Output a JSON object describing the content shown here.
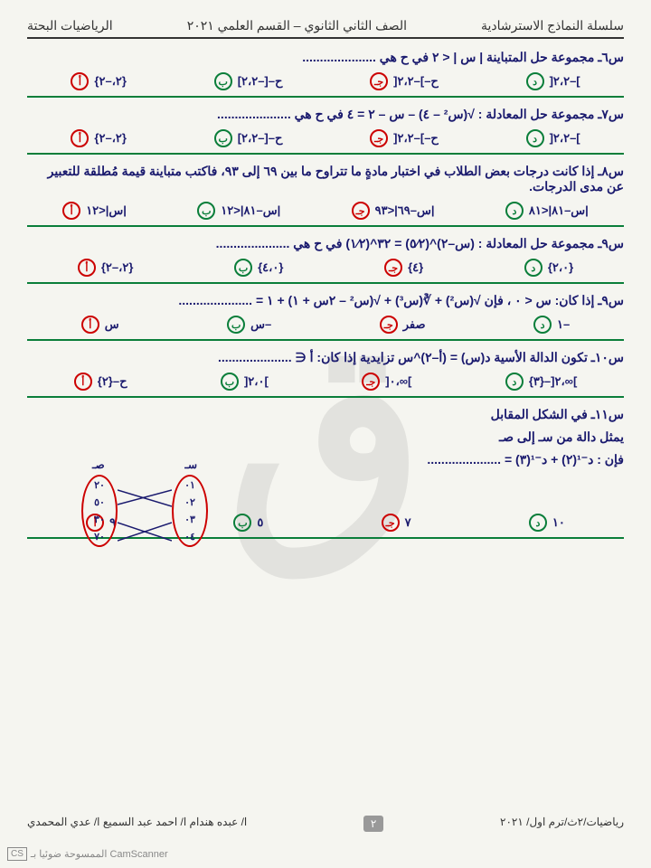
{
  "header": {
    "right": "سلسلة النماذج الاسترشادية",
    "center": "الصف الثاني الثانوي – القسم العلمي ٢٠٢١",
    "left": "الرياضيات البحتة"
  },
  "questions": [
    {
      "num": "س٦ـ",
      "text": "مجموعة حل المتباينة | س | < ٢ في ح هي .....................",
      "opts": [
        {
          "sym": "أ",
          "col": "c-red",
          "val": "{٢،–٢}"
        },
        {
          "sym": "ب",
          "col": "c-green",
          "val": "ح–[–٢،٢]"
        },
        {
          "sym": "جـ",
          "col": "c-red",
          "val": "ح–]–٢،٢["
        },
        {
          "sym": "د",
          "col": "c-green",
          "val": "]–٢،٢["
        }
      ]
    },
    {
      "num": "س٧ـ",
      "text": "مجموعة حل المعادلة : √(س² – ٤) – س – ٢ = ٤ في ح هي .....................",
      "opts": [
        {
          "sym": "أ",
          "col": "c-red",
          "val": "{٢،–٢}"
        },
        {
          "sym": "ب",
          "col": "c-green",
          "val": "ح–[–٢،٢]"
        },
        {
          "sym": "جـ",
          "col": "c-red",
          "val": "ح–]–٢،٢["
        },
        {
          "sym": "د",
          "col": "c-green",
          "val": "]–٢،٢["
        }
      ]
    },
    {
      "num": "س٨ـ",
      "text": "إذا كانت درجات بعض الطلاب في اختبار مادةٍ ما تتراوح ما بين ٦٩ إلى ٩٣، فاكتب متباينة قيمة مُطلقة للتعبير عن مدى الدرجات.",
      "opts": [
        {
          "sym": "أ",
          "col": "c-red",
          "val": "|س|<١٢"
        },
        {
          "sym": "ب",
          "col": "c-green",
          "val": "|س–٨١|<١٢"
        },
        {
          "sym": "جـ",
          "col": "c-red",
          "val": "|س–٦٩|<٩٣"
        },
        {
          "sym": "د",
          "col": "c-green",
          "val": "|س–٨١|<٨١"
        }
      ]
    },
    {
      "num": "س٩ـ",
      "text": "مجموعة حل المعادلة : (س–٢)^(٥⁄٢) = ٣٢^(١⁄٢) في ح هي .....................",
      "opts": [
        {
          "sym": "أ",
          "col": "c-red",
          "val": "{٢،–٢}"
        },
        {
          "sym": "ب",
          "col": "c-green",
          "val": "{٤،٠}"
        },
        {
          "sym": "جـ",
          "col": "c-red",
          "val": "{٤}"
        },
        {
          "sym": "د",
          "col": "c-green",
          "val": "{٢،٠}"
        }
      ]
    },
    {
      "num": "س٩ـ",
      "text": "إذا كان: س < ٠ ، فإن √(س²) + ∛(س³) + √(س² – ٢س + ١) + ١ = .....................",
      "opts": [
        {
          "sym": "أ",
          "col": "c-red",
          "val": "س"
        },
        {
          "sym": "ب",
          "col": "c-green",
          "val": "–س"
        },
        {
          "sym": "جـ",
          "col": "c-red",
          "val": "صفر"
        },
        {
          "sym": "د",
          "col": "c-green",
          "val": "–١"
        }
      ]
    },
    {
      "num": "س١٠ـ",
      "text": "تكون الدالة الأسية د(س) = (أ–٢)^س تزايدية إذا كان: أ ∈ .....................",
      "opts": [
        {
          "sym": "أ",
          "col": "c-red",
          "val": "ح–{٢}"
        },
        {
          "sym": "ب",
          "col": "c-green",
          "val": "]٢،٠["
        },
        {
          "sym": "جـ",
          "col": "c-red",
          "val": "]∞،٠["
        },
        {
          "sym": "د",
          "col": "c-green",
          "val": "]∞،٢[–{٣}"
        }
      ]
    }
  ],
  "q11": {
    "num": "س١١ـ",
    "line1": "في الشكل المقابل",
    "line2": "يمثل دالة من سـ إلى صـ",
    "line3": "فإن : د⁻¹(٢) + د⁻¹(٣) = .....................",
    "opts": [
      {
        "sym": "أ",
        "col": "c-red",
        "val": "٩"
      },
      {
        "sym": "ب",
        "col": "c-green",
        "val": "٥"
      },
      {
        "sym": "جـ",
        "col": "c-red",
        "val": "٧"
      },
      {
        "sym": "د",
        "col": "c-green",
        "val": "١٠"
      }
    ],
    "set_s_label": "سـ",
    "set_c_label": "صـ",
    "set_s": [
      "٠١",
      "٠٢",
      "٠٣",
      "٠٤"
    ],
    "set_c": [
      "٢٠",
      "٥٠",
      "٣٠",
      "٧٠"
    ]
  },
  "footer": {
    "right": "رياضيات/٢ث/ترم اول/ ٢٠٢١",
    "page": "٢",
    "left": "ا/ عبده هندام ا/ احمد عبد السميع ا/ عدي المحمدي"
  },
  "scanner": "الممسوحة ضوئيا بـ CamScanner",
  "colors": {
    "navy": "#1a1a6e",
    "red": "#c00",
    "green": "#0a7e3a"
  }
}
